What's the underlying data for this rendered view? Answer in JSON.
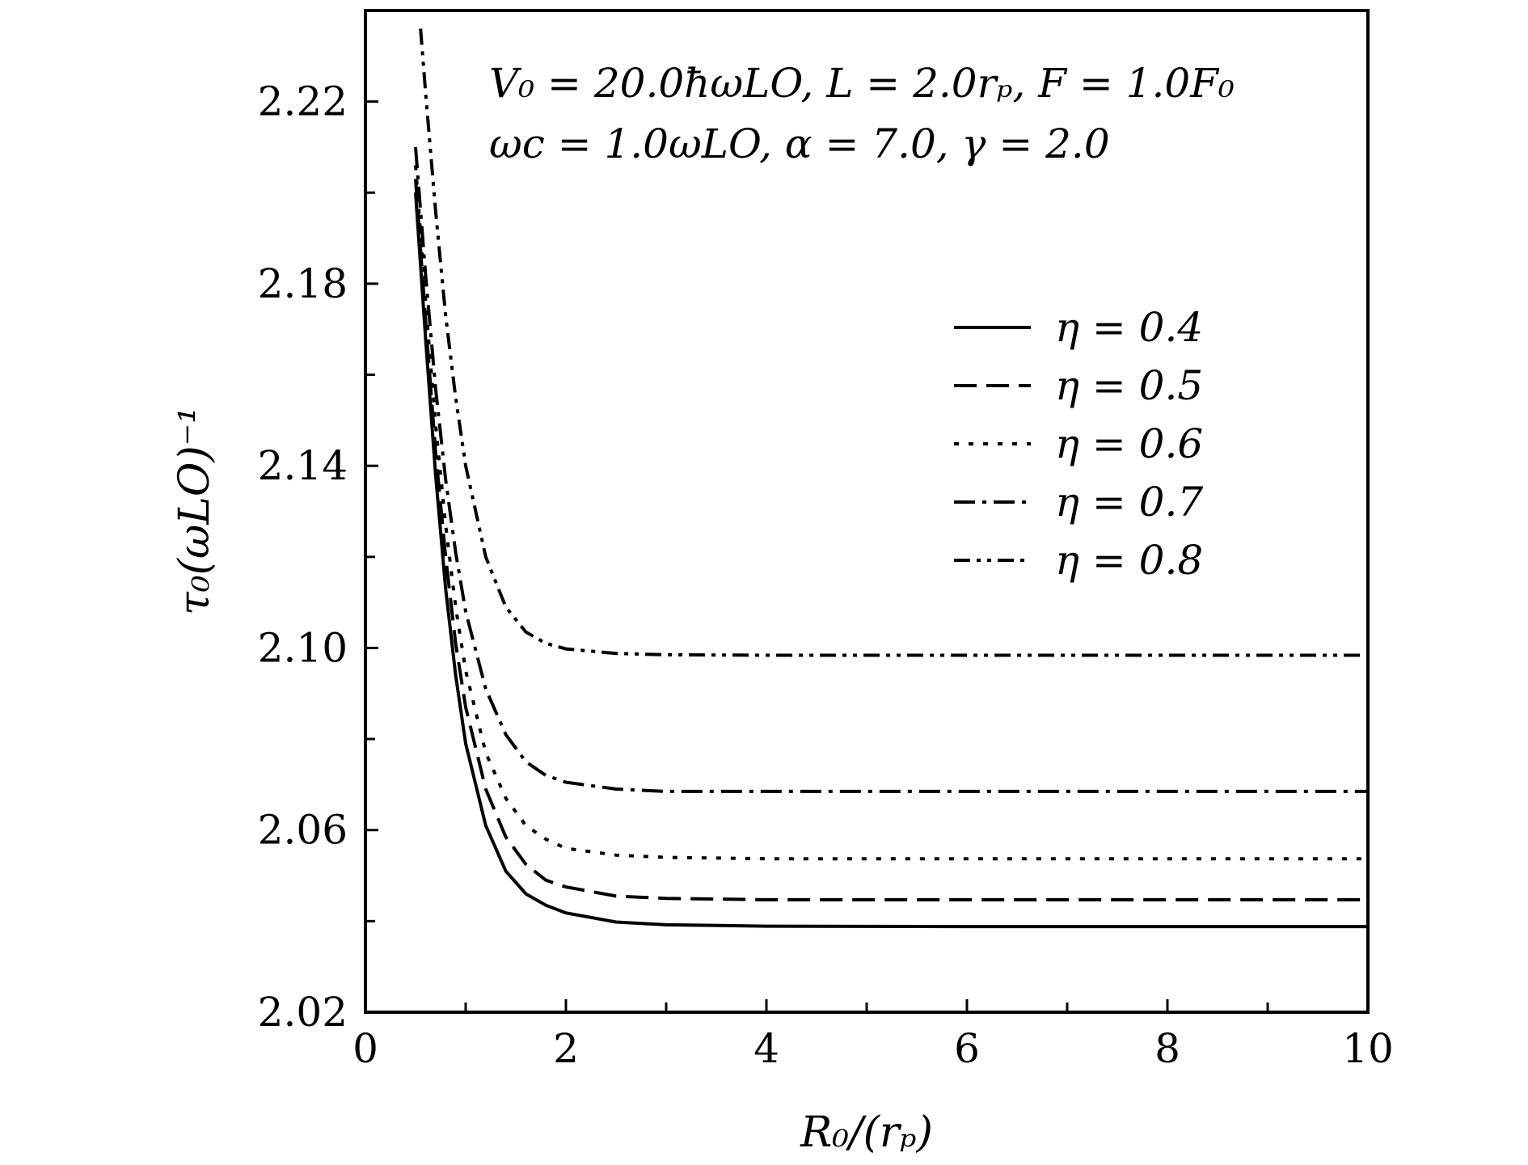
{
  "chart_data": {
    "type": "line",
    "xlabel": "R₀/(rₚ)",
    "ylabel": "τ₀(ωLO)⁻¹",
    "xlim": [
      0,
      10
    ],
    "ylim": [
      2.02,
      2.24
    ],
    "x_ticks": [
      "0",
      "2",
      "4",
      "6",
      "8",
      "10"
    ],
    "y_ticks": [
      "2.02",
      "2.06",
      "2.10",
      "2.14",
      "2.18",
      "2.22"
    ],
    "annotations": [
      "V₀ = 20.0ħωLO, L = 2.0rₚ, F = 1.0F₀",
      "ωc = 1.0ωLO, α = 7.0, γ = 2.0"
    ],
    "legend_position": "right",
    "grid": false,
    "series": [
      {
        "name": "η = 0.4",
        "dash": "solid",
        "x": [
          0.5,
          0.6,
          0.7,
          0.8,
          0.9,
          1.0,
          1.2,
          1.4,
          1.6,
          1.8,
          2.0,
          2.5,
          3.0,
          4.0,
          6.0,
          8.0,
          10.0
        ],
        "y": [
          2.2,
          2.168,
          2.138,
          2.113,
          2.094,
          2.079,
          2.061,
          2.051,
          2.046,
          2.0435,
          2.0418,
          2.0398,
          2.0392,
          2.0389,
          2.0388,
          2.0388,
          2.0388
        ]
      },
      {
        "name": "η = 0.5",
        "dash": "dashed",
        "x": [
          0.5,
          0.6,
          0.7,
          0.8,
          0.9,
          1.0,
          1.2,
          1.4,
          1.6,
          1.8,
          2.0,
          2.5,
          3.0,
          4.0,
          6.0,
          8.0,
          10.0
        ],
        "y": [
          2.203,
          2.172,
          2.143,
          2.12,
          2.101,
          2.087,
          2.069,
          2.0585,
          2.0525,
          2.049,
          2.0475,
          2.0455,
          2.045,
          2.0447,
          2.0447,
          2.0447,
          2.0447
        ]
      },
      {
        "name": "η = 0.6",
        "dash": "dotted",
        "x": [
          0.5,
          0.6,
          0.7,
          0.8,
          0.9,
          1.0,
          1.2,
          1.4,
          1.6,
          1.8,
          2.0,
          2.5,
          3.0,
          4.0,
          6.0,
          8.0,
          10.0
        ],
        "y": [
          2.206,
          2.176,
          2.149,
          2.127,
          2.109,
          2.095,
          2.077,
          2.067,
          2.061,
          2.058,
          2.056,
          2.0545,
          2.054,
          2.0537,
          2.0537,
          2.0537,
          2.0537
        ]
      },
      {
        "name": "η = 0.7",
        "dash": "dashdot",
        "x": [
          0.5,
          0.6,
          0.7,
          0.8,
          0.9,
          1.0,
          1.2,
          1.4,
          1.6,
          1.8,
          2.0,
          2.5,
          3.0,
          4.0,
          6.0,
          8.0,
          10.0
        ],
        "y": [
          2.21,
          2.182,
          2.157,
          2.137,
          2.121,
          2.108,
          2.091,
          2.081,
          2.075,
          2.072,
          2.0705,
          2.069,
          2.0685,
          2.0685,
          2.0685,
          2.0685,
          2.0685
        ]
      },
      {
        "name": "η = 0.8",
        "dash": "dashdotdot",
        "x": [
          0.55,
          0.6,
          0.7,
          0.8,
          0.9,
          1.0,
          1.2,
          1.4,
          1.6,
          1.8,
          2.0,
          2.5,
          3.0,
          4.0,
          6.0,
          8.0,
          10.0
        ],
        "y": [
          2.236,
          2.222,
          2.196,
          2.173,
          2.155,
          2.14,
          2.12,
          2.109,
          2.1035,
          2.101,
          2.0998,
          2.0988,
          2.0985,
          2.0984,
          2.0984,
          2.0984,
          2.0984
        ]
      }
    ]
  }
}
